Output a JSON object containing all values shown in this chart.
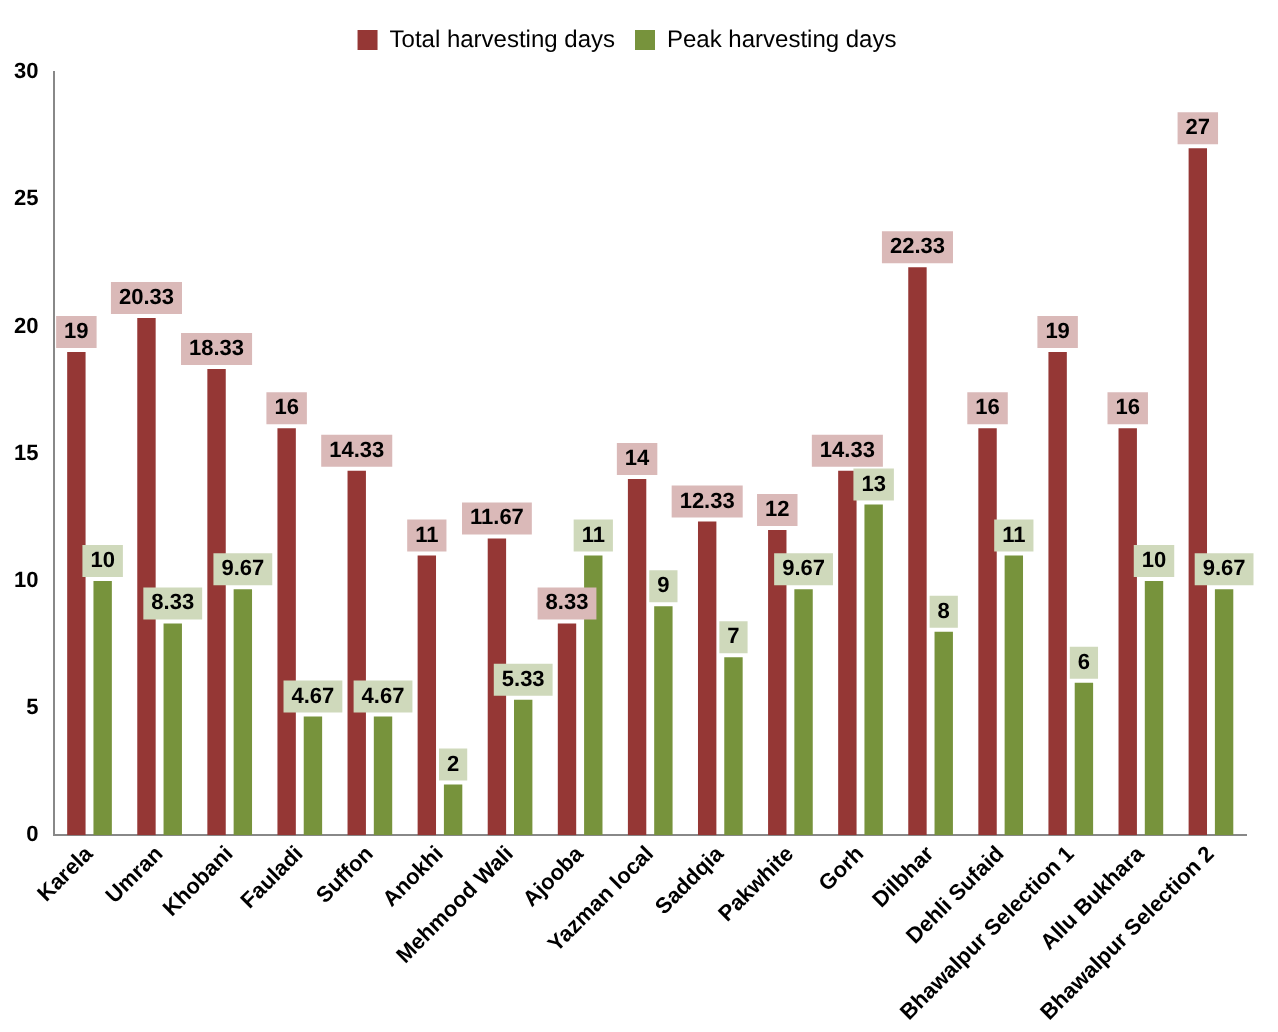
{
  "chart_data": {
    "type": "bar",
    "categories": [
      "Karela",
      "Umran",
      "Khobani",
      "Fauladi",
      "Suffon",
      "Anokhi",
      "Mehmood Wali",
      "Ajooba",
      "Yazman local",
      "Saddqia",
      "Pakwhite",
      "Gorh",
      "Dilbhar",
      "Dehli Sufaid",
      "Bhawalpur Selection 1",
      "Allu Bukhara",
      "Bhawalpur Selection 2"
    ],
    "series": [
      {
        "name": "Total harvesting days",
        "color": "#953735",
        "values": [
          19,
          20.33,
          18.33,
          16,
          14.33,
          11,
          11.67,
          8.33,
          14,
          12.33,
          12,
          14.33,
          22.33,
          16,
          19,
          16,
          27
        ]
      },
      {
        "name": "Peak harvesting days",
        "color": "#77933c",
        "values": [
          10,
          8.33,
          9.67,
          4.67,
          4.67,
          2,
          5.33,
          11,
          9,
          7,
          9.67,
          13,
          8,
          11,
          6,
          10,
          9.67
        ]
      }
    ],
    "ylim": [
      0,
      30
    ],
    "yticks": [
      0,
      5,
      10,
      15,
      20,
      25,
      30
    ],
    "grid": false,
    "legend": "top",
    "data_labels": true
  }
}
